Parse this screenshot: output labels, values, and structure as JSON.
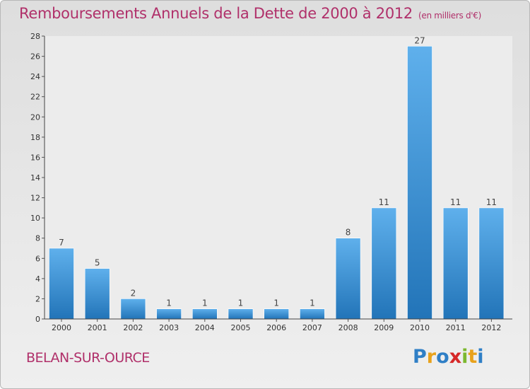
{
  "title": "Remboursements Annuels de la Dette de 2000 à 2012",
  "subtitle": "(en milliers d'€)",
  "commune": "BELAN-SUR-OURCE",
  "logo": {
    "letters": [
      "P",
      "r",
      "o",
      "x",
      "i",
      "t",
      "i"
    ],
    "colors": [
      "#2f7fc6",
      "#e8a21c",
      "#2f7fc6",
      "#d62828",
      "#7cb82f",
      "#e8a21c",
      "#2f7fc6"
    ]
  },
  "colors": {
    "bar_top": "#5fb0ec",
    "bar_bottom": "#2274b8",
    "title": "#b0306a",
    "plot_bg": "#ececec"
  },
  "chart_data": {
    "type": "bar",
    "categories": [
      "2000",
      "2001",
      "2002",
      "2003",
      "2004",
      "2005",
      "2006",
      "2007",
      "2008",
      "2009",
      "2010",
      "2011",
      "2012"
    ],
    "values": [
      7,
      5,
      2,
      1,
      1,
      1,
      1,
      1,
      8,
      11,
      27,
      11,
      11
    ],
    "ylim": [
      0,
      28
    ],
    "yticks": [
      0,
      2,
      4,
      6,
      8,
      10,
      12,
      14,
      16,
      18,
      20,
      22,
      24,
      26,
      28
    ],
    "grid": false,
    "data_labels": true
  }
}
